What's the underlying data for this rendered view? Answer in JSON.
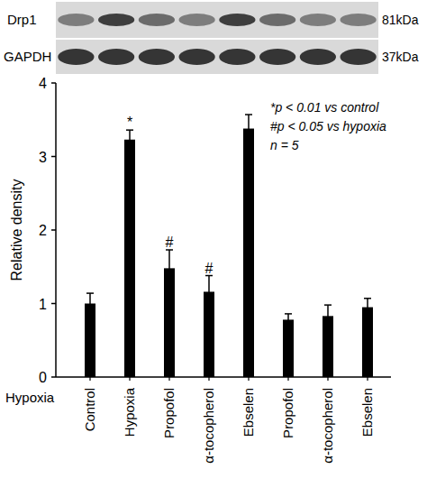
{
  "chart_data": {
    "type": "bar",
    "categories": [
      "Control",
      "Hypoxia",
      "Propofol",
      "α-tocopherol",
      "Ebselen",
      "Propofol",
      "α-tocopherol",
      "Ebselen"
    ],
    "values": [
      1.0,
      3.23,
      1.48,
      1.16,
      3.38,
      0.78,
      0.83,
      0.95
    ],
    "errors": [
      0.14,
      0.13,
      0.25,
      0.22,
      0.19,
      0.08,
      0.15,
      0.12
    ],
    "significance": [
      null,
      "*",
      "#",
      "#",
      null,
      null,
      null,
      null
    ],
    "color": "#000000",
    "ylim": [
      0,
      4
    ],
    "yticks": [
      0,
      1,
      2,
      3,
      4
    ],
    "y_label": "Relative density",
    "x_label": "Hypoxia",
    "annotations": [
      "*p < 0.01 vs control",
      "#p < 0.05 vs hypoxia",
      "n = 5"
    ]
  },
  "blot": {
    "rows": [
      {
        "label": "Drp1",
        "size": "81kDa"
      },
      {
        "label": "GAPDH",
        "size": "37kDa"
      }
    ]
  }
}
